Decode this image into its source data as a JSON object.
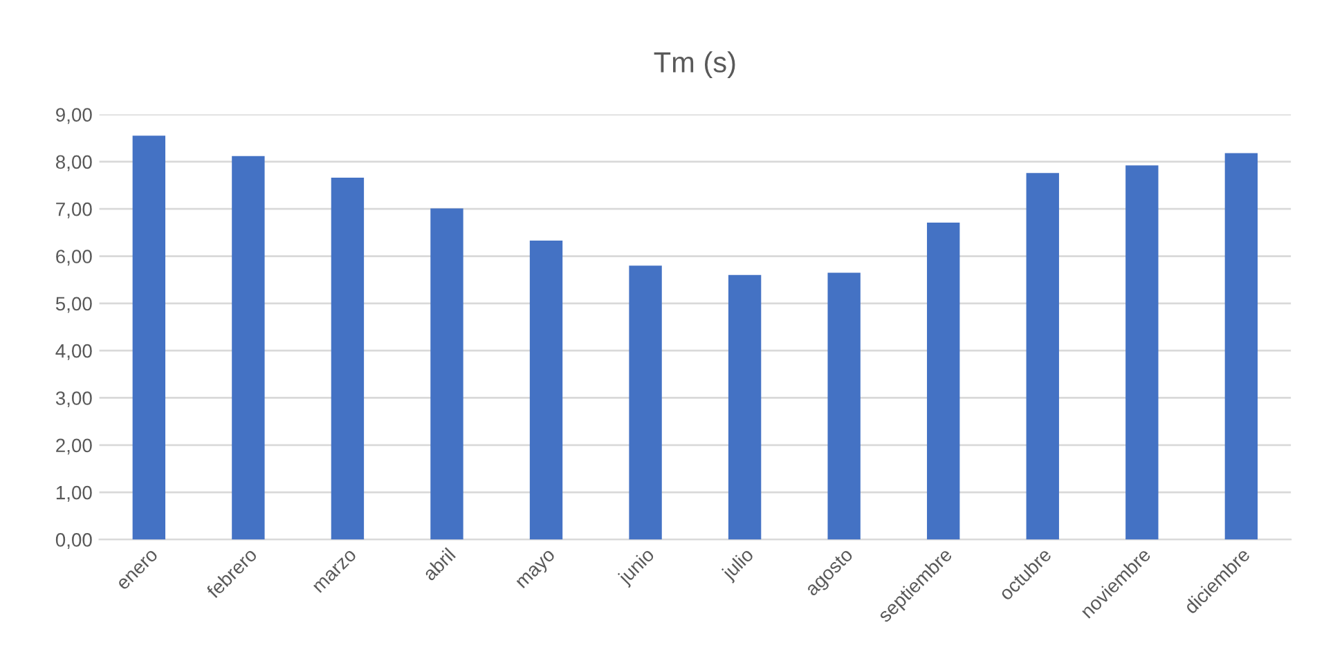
{
  "chart_data": {
    "type": "bar",
    "title": "Tm (s)",
    "categories": [
      "enero",
      "febrero",
      "marzo",
      "abril",
      "mayo",
      "junio",
      "julio",
      "agosto",
      "septiembre",
      "octubre",
      "noviembre",
      "diciembre"
    ],
    "values": [
      8.55,
      8.12,
      7.66,
      7.01,
      6.33,
      5.8,
      5.6,
      5.65,
      6.71,
      7.76,
      7.92,
      8.18
    ],
    "color": "#4472c4",
    "ylim": [
      0,
      9
    ],
    "yticks": [
      {
        "value": 0,
        "label": "0,00"
      },
      {
        "value": 1,
        "label": "1,00"
      },
      {
        "value": 2,
        "label": "2,00"
      },
      {
        "value": 3,
        "label": "3,00"
      },
      {
        "value": 4,
        "label": "4,00"
      },
      {
        "value": 5,
        "label": "5,00"
      },
      {
        "value": 6,
        "label": "6,00"
      },
      {
        "value": 7,
        "label": "7,00"
      },
      {
        "value": 8,
        "label": "8,00"
      },
      {
        "value": 9,
        "label": "9,00"
      }
    ],
    "grid": "y",
    "legend": false
  }
}
